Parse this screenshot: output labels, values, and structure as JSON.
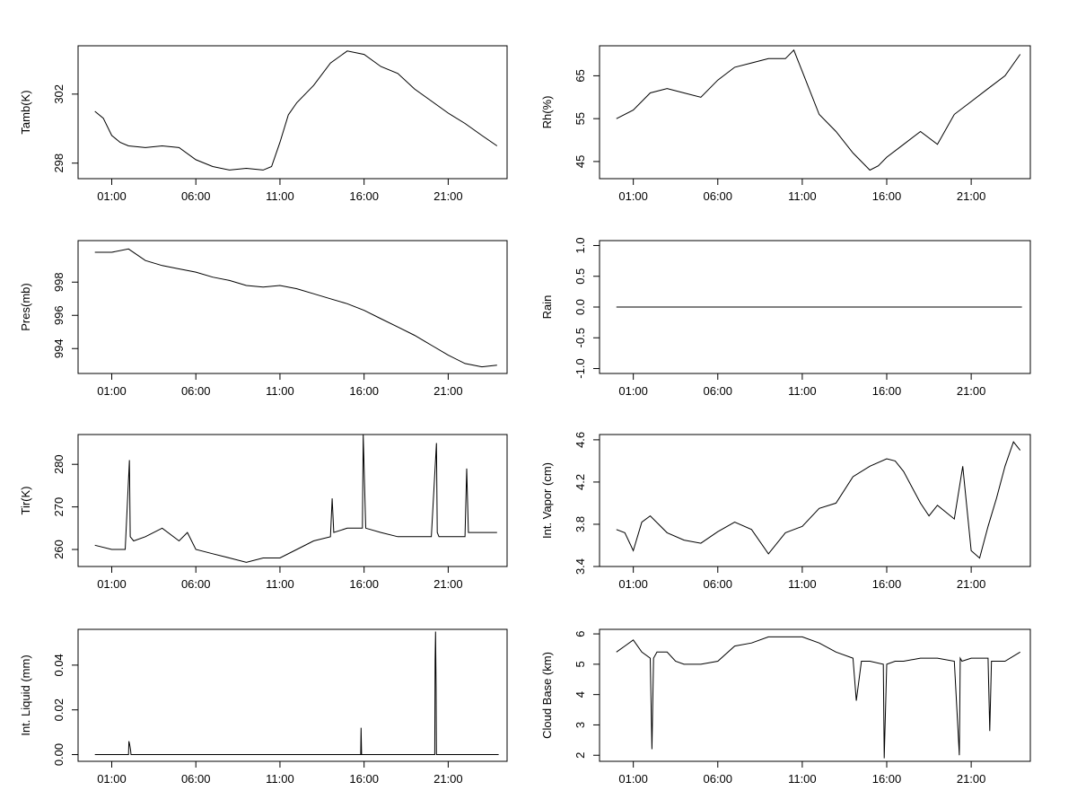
{
  "chart_data": [
    {
      "id": "tamb",
      "type": "line",
      "xlabel": "",
      "ylabel": "Tamb(K)",
      "xlim": [
        -1,
        24.5
      ],
      "ylim": [
        297.1,
        304.8
      ],
      "xticks": [
        "01:00",
        "06:00",
        "11:00",
        "16:00",
        "21:00"
      ],
      "yticks": [
        298,
        302
      ],
      "series": [
        {
          "x": [
            0,
            0.5,
            1,
            1.5,
            2,
            3,
            4,
            5,
            6,
            7,
            8,
            9,
            10,
            10.5,
            11,
            11.5,
            12,
            13,
            14,
            15,
            16,
            17,
            18,
            19,
            20,
            21,
            22,
            23,
            23.9
          ],
          "y": [
            301.0,
            300.6,
            299.6,
            299.2,
            299.0,
            298.9,
            299.0,
            298.9,
            298.2,
            297.8,
            297.6,
            297.7,
            297.6,
            297.8,
            299.2,
            300.8,
            301.5,
            302.5,
            303.8,
            304.5,
            304.3,
            303.6,
            303.2,
            302.3,
            301.6,
            300.9,
            300.3,
            299.6,
            299.0
          ]
        }
      ]
    },
    {
      "id": "rh",
      "type": "line",
      "xlabel": "",
      "ylabel": "Rh(%)",
      "xlim": [
        -1,
        24.5
      ],
      "ylim": [
        41,
        72
      ],
      "xticks": [
        "01:00",
        "06:00",
        "11:00",
        "16:00",
        "21:00"
      ],
      "yticks": [
        45,
        55,
        65
      ],
      "series": [
        {
          "x": [
            0,
            1,
            2,
            3,
            4,
            5,
            6,
            7,
            8,
            9,
            10,
            10.5,
            11,
            12,
            13,
            14,
            15,
            15.5,
            16,
            17,
            18,
            19,
            20,
            21,
            22,
            23,
            23.9
          ],
          "y": [
            55,
            57,
            61,
            62,
            61,
            60,
            64,
            67,
            68,
            69,
            69,
            71,
            66,
            56,
            52,
            47,
            43,
            44,
            46,
            49,
            52,
            49,
            56,
            59,
            62,
            65,
            70
          ]
        }
      ]
    },
    {
      "id": "pres",
      "type": "line",
      "xlabel": "",
      "ylabel": "Pres(mb)",
      "xlim": [
        -1,
        24.5
      ],
      "ylim": [
        992.5,
        1000.5
      ],
      "xticks": [
        "01:00",
        "06:00",
        "11:00",
        "16:00",
        "21:00"
      ],
      "yticks": [
        994,
        996,
        998
      ],
      "series": [
        {
          "x": [
            0,
            1,
            2,
            3,
            4,
            5,
            6,
            7,
            8,
            9,
            10,
            11,
            12,
            13,
            14,
            15,
            16,
            17,
            18,
            19,
            20,
            21,
            22,
            23,
            23.9
          ],
          "y": [
            999.8,
            999.8,
            1000.0,
            999.3,
            999.0,
            998.8,
            998.6,
            998.3,
            998.1,
            997.8,
            997.7,
            997.8,
            997.6,
            997.3,
            997.0,
            996.7,
            996.3,
            995.8,
            995.3,
            994.8,
            994.2,
            993.6,
            993.1,
            992.9,
            993.0
          ]
        }
      ]
    },
    {
      "id": "rain",
      "type": "line",
      "xlabel": "",
      "ylabel": "Rain",
      "xlim": [
        -1,
        24.5
      ],
      "ylim": [
        -1.08,
        1.08
      ],
      "xticks": [
        "01:00",
        "06:00",
        "11:00",
        "16:00",
        "21:00"
      ],
      "yticks": [
        -1.0,
        -0.5,
        0.0,
        0.5,
        1.0
      ],
      "series": [
        {
          "x": [
            0,
            24
          ],
          "y": [
            0,
            0
          ]
        }
      ]
    },
    {
      "id": "tir",
      "type": "line",
      "xlabel": "",
      "ylabel": "Tir(K)",
      "xlim": [
        -1,
        24.5
      ],
      "ylim": [
        256,
        287
      ],
      "xticks": [
        "01:00",
        "06:00",
        "11:00",
        "16:00",
        "21:00"
      ],
      "yticks": [
        260,
        270,
        280
      ],
      "series": [
        {
          "x": [
            0,
            1,
            1.8,
            2.05,
            2.1,
            2.3,
            3,
            4,
            5,
            5.5,
            6,
            7,
            8,
            9,
            10,
            11,
            12,
            13,
            14,
            14.1,
            14.2,
            15,
            15.9,
            15.95,
            16.1,
            17,
            18,
            19,
            20,
            20.3,
            20.35,
            20.45,
            21,
            21.5,
            22,
            22.1,
            22.2,
            23,
            23.9
          ],
          "y": [
            261,
            260,
            260,
            281,
            263,
            262,
            263,
            265,
            262,
            264,
            260,
            259,
            258,
            257,
            258,
            258,
            260,
            262,
            263,
            272,
            264,
            265,
            265,
            287,
            265,
            264,
            263,
            263,
            263,
            285,
            264,
            263,
            263,
            263,
            263,
            279,
            264,
            264,
            264
          ]
        }
      ]
    },
    {
      "id": "vapor",
      "type": "line",
      "xlabel": "",
      "ylabel": "Int. Vapor (cm)",
      "xlim": [
        -1,
        24.5
      ],
      "ylim": [
        3.4,
        4.65
      ],
      "xticks": [
        "01:00",
        "06:00",
        "11:00",
        "16:00",
        "21:00"
      ],
      "yticks": [
        3.4,
        3.8,
        4.2,
        4.6
      ],
      "series": [
        {
          "x": [
            0,
            0.5,
            1,
            1.5,
            2,
            3,
            4,
            5,
            6,
            7,
            8,
            9,
            10,
            11,
            12,
            13,
            14,
            15,
            16,
            16.5,
            17,
            18,
            18.5,
            19,
            20,
            20.5,
            21,
            21.5,
            22,
            22.5,
            23,
            23.5,
            23.9
          ],
          "y": [
            3.75,
            3.72,
            3.55,
            3.82,
            3.88,
            3.72,
            3.65,
            3.62,
            3.73,
            3.82,
            3.75,
            3.52,
            3.72,
            3.78,
            3.95,
            4.0,
            4.25,
            4.35,
            4.42,
            4.4,
            4.3,
            4.0,
            3.88,
            3.98,
            3.85,
            4.35,
            3.55,
            3.48,
            3.78,
            4.05,
            4.35,
            4.58,
            4.5
          ]
        }
      ]
    },
    {
      "id": "liquid",
      "type": "line",
      "xlabel": "",
      "ylabel": "Int. Liquid (mm)",
      "xlim": [
        -1,
        24.5
      ],
      "ylim": [
        -0.003,
        0.056
      ],
      "xticks": [
        "01:00",
        "06:00",
        "11:00",
        "16:00",
        "21:00"
      ],
      "yticks": [
        0.0,
        0.02,
        0.04
      ],
      "series": [
        {
          "x": [
            0,
            2.0,
            2.02,
            2.05,
            2.08,
            2.12,
            2.15,
            15.8,
            15.82,
            15.85,
            20.2,
            20.22,
            20.25,
            20.28,
            20.3,
            24
          ],
          "y": [
            0,
            0,
            0.006,
            0.005,
            0.004,
            0.002,
            0,
            0,
            0.012,
            0,
            0,
            0.042,
            0.055,
            0.03,
            0,
            0
          ]
        }
      ]
    },
    {
      "id": "cloud",
      "type": "line",
      "xlabel": "",
      "ylabel": "Cloud Base (km)",
      "xlim": [
        -1,
        24.5
      ],
      "ylim": [
        1.8,
        6.15
      ],
      "xticks": [
        "01:00",
        "06:00",
        "11:00",
        "16:00",
        "21:00"
      ],
      "yticks": [
        2,
        3,
        4,
        5,
        6
      ],
      "series": [
        {
          "x": [
            0,
            0.5,
            1,
            1.5,
            2.0,
            2.1,
            2.2,
            2.4,
            3,
            3.5,
            4,
            5,
            6,
            7,
            8,
            9,
            10,
            11,
            12,
            13,
            14,
            14.2,
            14.5,
            15,
            15.8,
            15.85,
            16,
            16.5,
            17,
            18,
            19,
            20,
            20.3,
            20.35,
            20.45,
            21,
            22,
            22.1,
            22.2,
            23,
            23.9
          ],
          "y": [
            5.4,
            5.6,
            5.8,
            5.4,
            5.2,
            2.2,
            5.2,
            5.4,
            5.4,
            5.1,
            5.0,
            5.0,
            5.1,
            5.6,
            5.7,
            5.9,
            5.9,
            5.9,
            5.7,
            5.4,
            5.2,
            3.8,
            5.1,
            5.1,
            5.0,
            1.9,
            5.0,
            5.1,
            5.1,
            5.2,
            5.2,
            5.1,
            2.0,
            5.2,
            5.1,
            5.2,
            5.2,
            2.8,
            5.1,
            5.1,
            5.4
          ]
        }
      ]
    }
  ]
}
